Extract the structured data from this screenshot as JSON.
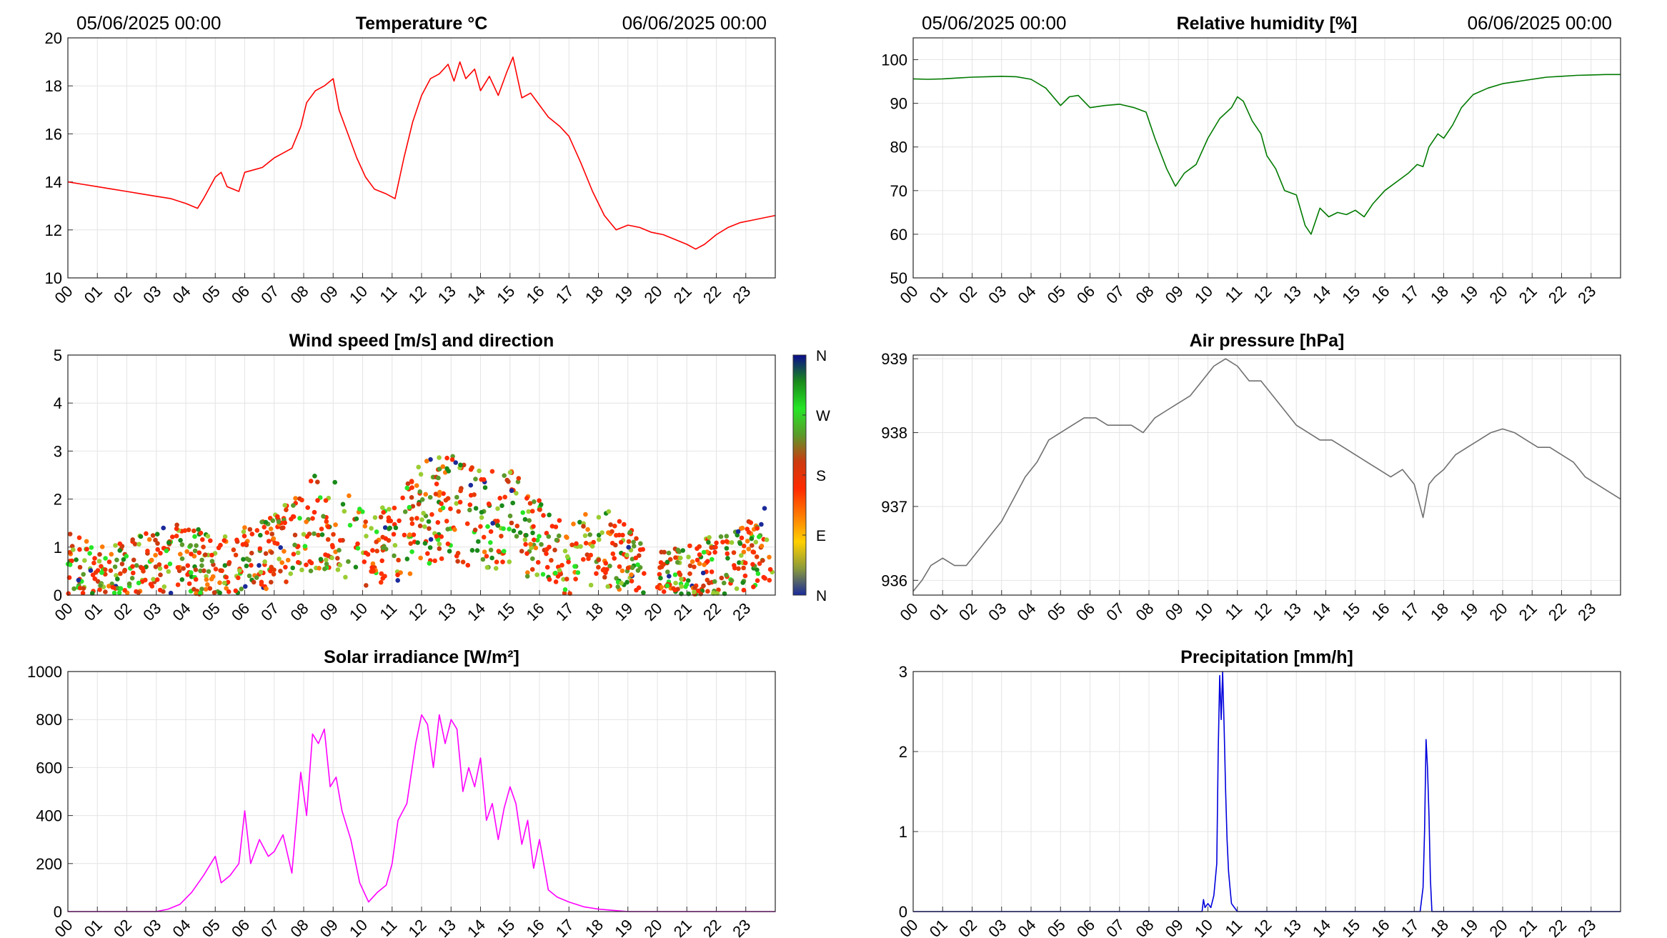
{
  "hours": [
    "00",
    "01",
    "02",
    "03",
    "04",
    "05",
    "06",
    "07",
    "08",
    "09",
    "10",
    "11",
    "12",
    "13",
    "14",
    "15",
    "16",
    "17",
    "18",
    "19",
    "20",
    "21",
    "22",
    "23"
  ],
  "date_start": "05/06/2025 00:00",
  "date_end": "06/06/2025 00:00",
  "chart_data": [
    {
      "id": "temperature",
      "type": "line",
      "title": "Temperature °C",
      "color": "#ff0000",
      "ylim": [
        10,
        20
      ],
      "yticks": [
        "10",
        "12",
        "14",
        "16",
        "18",
        "20"
      ],
      "xlim": [
        0,
        24
      ],
      "grid": true,
      "x": [
        0,
        0.5,
        1,
        1.5,
        2,
        2.5,
        3,
        3.5,
        4,
        4.4,
        4.6,
        5,
        5.2,
        5.4,
        5.8,
        6,
        6.3,
        6.6,
        7,
        7.3,
        7.6,
        7.9,
        8.1,
        8.4,
        8.7,
        9,
        9.2,
        9.5,
        9.8,
        10.1,
        10.4,
        10.8,
        11.1,
        11.4,
        11.7,
        12,
        12.3,
        12.6,
        12.9,
        13.1,
        13.3,
        13.5,
        13.8,
        14,
        14.3,
        14.6,
        14.9,
        15.1,
        15.4,
        15.7,
        16,
        16.3,
        16.7,
        17,
        17.4,
        17.8,
        18.2,
        18.6,
        19,
        19.4,
        19.8,
        20.2,
        20.6,
        21,
        21.3,
        21.6,
        22,
        22.4,
        22.8,
        23.2,
        23.6,
        24
      ],
      "y": [
        14.0,
        13.9,
        13.8,
        13.7,
        13.6,
        13.5,
        13.4,
        13.3,
        13.1,
        12.9,
        13.3,
        14.2,
        14.4,
        13.8,
        13.6,
        14.4,
        14.5,
        14.6,
        15.0,
        15.2,
        15.4,
        16.3,
        17.3,
        17.8,
        18.0,
        18.3,
        17.0,
        16.0,
        15.0,
        14.2,
        13.7,
        13.5,
        13.3,
        15.0,
        16.5,
        17.6,
        18.3,
        18.5,
        18.9,
        18.2,
        19.0,
        18.3,
        18.7,
        17.8,
        18.4,
        17.6,
        18.6,
        19.2,
        17.5,
        17.7,
        17.2,
        16.7,
        16.3,
        15.9,
        14.8,
        13.6,
        12.6,
        12.0,
        12.2,
        12.1,
        11.9,
        11.8,
        11.6,
        11.4,
        11.2,
        11.4,
        11.8,
        12.1,
        12.3,
        12.4,
        12.5,
        12.6
      ]
    },
    {
      "id": "humidity",
      "type": "line",
      "title": "Relative humidity [%]",
      "color": "#007a00",
      "ylim": [
        50,
        105
      ],
      "yticks": [
        "50",
        "60",
        "70",
        "80",
        "90",
        "100"
      ],
      "xlim": [
        0,
        24
      ],
      "grid": true,
      "x": [
        0,
        0.5,
        1,
        1.5,
        2,
        2.5,
        3,
        3.5,
        4,
        4.5,
        5,
        5.3,
        5.6,
        6,
        6.5,
        7,
        7.5,
        7.9,
        8.2,
        8.6,
        8.9,
        9.2,
        9.6,
        10,
        10.4,
        10.8,
        11,
        11.2,
        11.5,
        11.8,
        12,
        12.3,
        12.6,
        13,
        13.3,
        13.5,
        13.8,
        14.1,
        14.4,
        14.7,
        15,
        15.3,
        15.6,
        16,
        16.4,
        16.8,
        17.1,
        17.3,
        17.5,
        17.8,
        18,
        18.3,
        18.6,
        19,
        19.5,
        20,
        20.5,
        21,
        21.5,
        22,
        22.5,
        23,
        23.5,
        24
      ],
      "y": [
        95.6,
        95.5,
        95.6,
        95.8,
        96.0,
        96.1,
        96.2,
        96.1,
        95.5,
        93.5,
        89.5,
        91.5,
        91.8,
        89.0,
        89.5,
        89.8,
        89.0,
        88.0,
        82.0,
        75.0,
        71.0,
        74.0,
        76.0,
        82.0,
        86.5,
        89.0,
        91.5,
        90.5,
        86.0,
        83.0,
        78.0,
        75.0,
        70.0,
        69.0,
        62.0,
        60.0,
        66.0,
        64.0,
        65.0,
        64.5,
        65.5,
        64.0,
        67.0,
        70.0,
        72.0,
        74.0,
        76.0,
        75.5,
        80.0,
        83.0,
        82.0,
        85.0,
        89.0,
        92.0,
        93.5,
        94.5,
        95.0,
        95.5,
        96.0,
        96.2,
        96.4,
        96.5,
        96.6,
        96.6
      ]
    },
    {
      "id": "wind",
      "type": "scatter",
      "title": "Wind speed [m/s] and direction",
      "ylim": [
        0,
        5
      ],
      "yticks": [
        "0",
        "1",
        "2",
        "3",
        "4",
        "5"
      ],
      "xlim": [
        0,
        24
      ],
      "grid": true,
      "colorbar_labels": [
        "N",
        "W",
        "S",
        "E",
        "N"
      ],
      "colorbar_stops": [
        "#0b0b8c",
        "#1a8a1a",
        "#26e626",
        "#5a9a2a",
        "#cc3a10",
        "#ff2a00",
        "#ff7a00",
        "#ffd000",
        "#8a9a3a",
        "#1a2a9a"
      ],
      "mean_speed_profile": {
        "x": [
          0,
          1,
          2,
          3,
          4,
          5,
          6,
          7,
          8,
          9,
          10,
          11,
          12,
          13,
          14,
          15,
          16,
          17,
          18,
          19,
          20,
          21,
          22,
          23,
          24
        ],
        "y": [
          0.7,
          0.4,
          0.5,
          0.7,
          0.8,
          0.5,
          0.7,
          0.9,
          1.5,
          1.5,
          1.0,
          1.0,
          1.7,
          1.8,
          1.6,
          1.6,
          1.1,
          0.7,
          1.1,
          0.7,
          0.4,
          0.4,
          0.6,
          0.9,
          1.1
        ]
      }
    },
    {
      "id": "pressure",
      "type": "line",
      "title": "Air pressure [hPa]",
      "color": "#707070",
      "ylim": [
        935.8,
        939.05
      ],
      "yticks": [
        "936",
        "937",
        "938",
        "939"
      ],
      "xlim": [
        0,
        24
      ],
      "grid": true,
      "x": [
        0,
        0.3,
        0.6,
        1,
        1.4,
        1.8,
        2.2,
        2.6,
        3,
        3.4,
        3.8,
        4.2,
        4.6,
        5,
        5.4,
        5.8,
        6.2,
        6.6,
        7,
        7.4,
        7.8,
        8.2,
        8.6,
        9,
        9.4,
        9.8,
        10.2,
        10.6,
        11,
        11.4,
        11.8,
        12.2,
        12.6,
        13,
        13.4,
        13.8,
        14.2,
        14.6,
        15,
        15.4,
        15.8,
        16.2,
        16.6,
        17,
        17.3,
        17.5,
        17.7,
        18,
        18.4,
        18.8,
        19.2,
        19.6,
        20,
        20.4,
        20.8,
        21.2,
        21.6,
        22,
        22.4,
        22.8,
        23.2,
        23.6,
        24
      ],
      "y": [
        935.85,
        936.0,
        936.2,
        936.3,
        936.2,
        936.2,
        936.4,
        936.6,
        936.8,
        937.1,
        937.4,
        937.6,
        937.9,
        938.0,
        938.1,
        938.2,
        938.2,
        938.1,
        938.1,
        938.1,
        938.0,
        938.2,
        938.3,
        938.4,
        938.5,
        938.7,
        938.9,
        939.0,
        938.9,
        938.7,
        938.7,
        938.5,
        938.3,
        938.1,
        938.0,
        937.9,
        937.9,
        937.8,
        937.7,
        937.6,
        937.5,
        937.4,
        937.5,
        937.3,
        936.85,
        937.3,
        937.4,
        937.5,
        937.7,
        937.8,
        937.9,
        938.0,
        938.05,
        938.0,
        937.9,
        937.8,
        937.8,
        937.7,
        937.6,
        937.4,
        937.3,
        937.2,
        937.1
      ]
    },
    {
      "id": "solar",
      "type": "line",
      "title": "Solar irradiance [W/m²]",
      "color": "#ff00ff",
      "ylim": [
        0,
        1000
      ],
      "yticks": [
        "0",
        "200",
        "400",
        "600",
        "800",
        "1000"
      ],
      "xlim": [
        0,
        24
      ],
      "grid": true,
      "x": [
        0,
        1,
        2,
        3,
        3.4,
        3.8,
        4.2,
        4.6,
        5,
        5.2,
        5.5,
        5.8,
        6,
        6.2,
        6.5,
        6.8,
        7,
        7.3,
        7.6,
        7.9,
        8.1,
        8.3,
        8.5,
        8.7,
        8.9,
        9.1,
        9.3,
        9.6,
        9.9,
        10.2,
        10.5,
        10.8,
        11,
        11.2,
        11.5,
        11.8,
        12,
        12.2,
        12.4,
        12.6,
        12.8,
        13,
        13.2,
        13.4,
        13.6,
        13.8,
        14,
        14.2,
        14.4,
        14.6,
        14.8,
        15,
        15.2,
        15.4,
        15.6,
        15.8,
        16,
        16.3,
        16.6,
        17,
        17.5,
        18,
        18.5,
        19,
        20,
        21,
        22,
        23,
        24
      ],
      "y": [
        0,
        0,
        0,
        0,
        10,
        30,
        80,
        150,
        230,
        120,
        150,
        200,
        420,
        200,
        300,
        230,
        250,
        320,
        160,
        580,
        400,
        740,
        700,
        760,
        520,
        560,
        420,
        300,
        120,
        40,
        80,
        110,
        200,
        380,
        450,
        700,
        820,
        780,
        600,
        820,
        700,
        800,
        760,
        500,
        600,
        520,
        640,
        380,
        450,
        300,
        430,
        520,
        450,
        280,
        380,
        180,
        300,
        90,
        60,
        40,
        20,
        10,
        5,
        0,
        0,
        0,
        0,
        0,
        0
      ]
    },
    {
      "id": "precipitation",
      "type": "line",
      "title": "Precipitation [mm/h]",
      "color": "#0000dd",
      "ylim": [
        0,
        3
      ],
      "yticks": [
        "0",
        "1",
        "2",
        "3"
      ],
      "xlim": [
        0,
        24
      ],
      "grid": true,
      "x": [
        0,
        9.8,
        9.85,
        9.9,
        10.0,
        10.1,
        10.2,
        10.3,
        10.35,
        10.4,
        10.45,
        10.5,
        10.55,
        10.6,
        10.65,
        10.7,
        10.75,
        10.8,
        10.9,
        11.0,
        17.2,
        17.3,
        17.35,
        17.4,
        17.45,
        17.5,
        17.55,
        17.6,
        24
      ],
      "y": [
        0,
        0,
        0.15,
        0.05,
        0.1,
        0.05,
        0.2,
        0.6,
        2.0,
        2.95,
        2.4,
        3.0,
        2.3,
        1.5,
        0.9,
        0.5,
        0.3,
        0.1,
        0.05,
        0,
        0,
        0.3,
        1.0,
        2.15,
        1.8,
        1.2,
        0.4,
        0,
        0
      ]
    }
  ]
}
